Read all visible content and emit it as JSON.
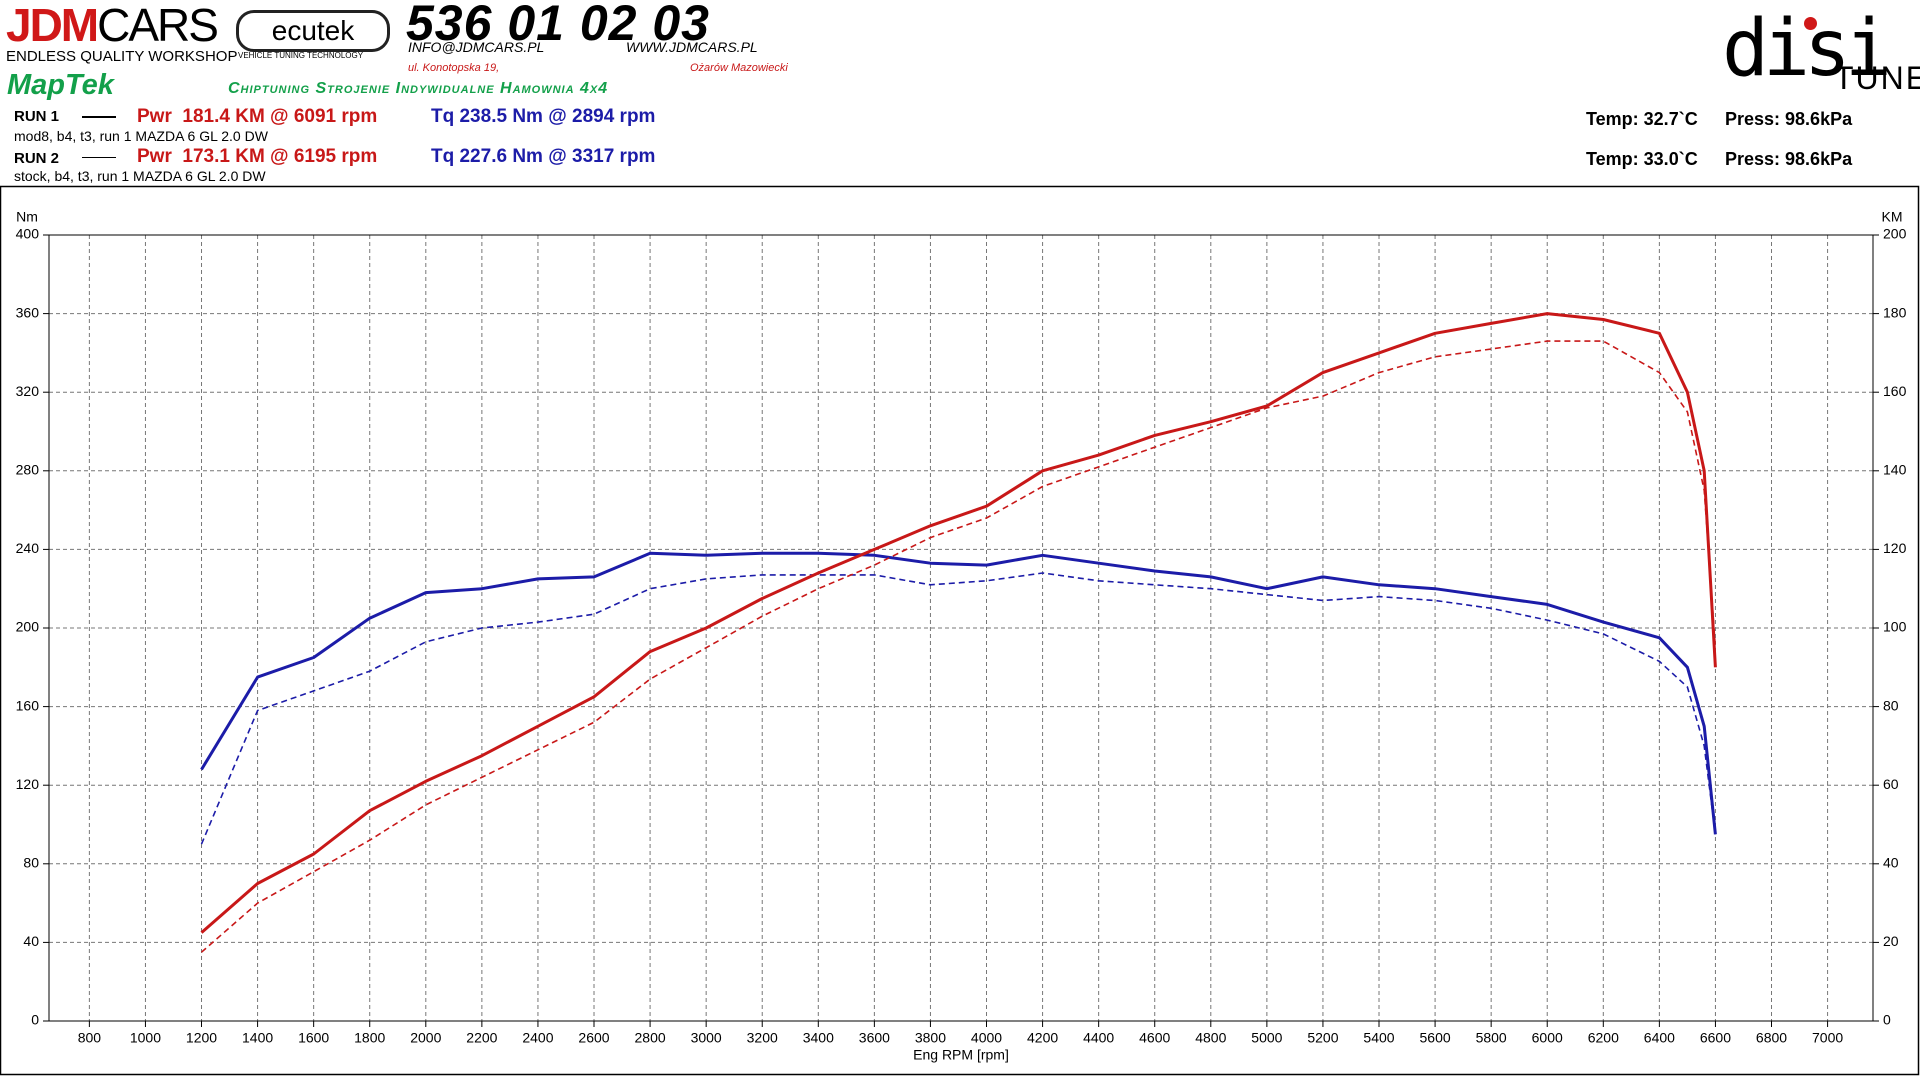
{
  "header": {
    "logo_jdm": "JDM",
    "logo_cars": "CARS",
    "workshop": "ENDLESS QUALITY WORKSHOP",
    "ecutek": "ecutek",
    "ecutek_sub": "VEHICLE TUNING TECHNOLOGY",
    "phone": "536 01 02 03",
    "email": "INFO@JDMCARS.PL",
    "web": "WWW.JDMCARS.PL",
    "street": "ul. Konotopska 19,",
    "city": "Ożarów Mazowiecki",
    "maptek": "MapTek",
    "services": "Chiptuning Strojenie Indywidualne Hamownia 4x4",
    "disi": "disi",
    "tune": "TUNE"
  },
  "runs": [
    {
      "label": "RUN 1",
      "pwr": "Pwr  181.4 KM @ 6091 rpm",
      "tq": "Tq 238.5 Nm @ 2894 rpm",
      "desc": "mod8, b4, t3, run 1 MAZDA 6 GL 2.0 DW",
      "temp": "Temp: 32.7`C",
      "press": "Press: 98.6kPa"
    },
    {
      "label": "RUN 2",
      "pwr": "Pwr  173.1 KM @ 6195 rpm",
      "tq": "Tq 227.6 Nm @ 3317 rpm",
      "desc": "stock, b4, t3, run 1 MAZDA 6 GL 2.0 DW",
      "temp": "Temp: 33.0`C",
      "press": "Press: 98.6kPa"
    }
  ],
  "chart_data": {
    "type": "line",
    "x_label": "Eng RPM [rpm]",
    "y_label": "Nm",
    "y2_label": "KM",
    "x": [
      1200,
      1400,
      1600,
      1800,
      2000,
      2200,
      2400,
      2600,
      2800,
      3000,
      3200,
      3400,
      3600,
      3800,
      4000,
      4200,
      4400,
      4600,
      4800,
      5000,
      5200,
      5400,
      5600,
      5800,
      6000,
      6200,
      6400,
      6500,
      6560,
      6600
    ],
    "series": [
      {
        "color": "#1c1ca8",
        "line_style": "solid",
        "values": [
          128,
          175,
          185,
          205,
          218,
          220,
          225,
          226,
          238,
          237,
          238,
          238,
          237,
          233,
          232,
          237,
          233,
          229,
          226,
          220,
          226,
          222,
          220,
          216,
          212,
          203,
          195,
          180,
          150,
          95
        ]
      },
      {
        "color": "#1c1ca8",
        "line_style": "dashed",
        "values": [
          90,
          158,
          168,
          178,
          193,
          200,
          203,
          207,
          220,
          225,
          227,
          227,
          227,
          222,
          224,
          228,
          224,
          222,
          220,
          217,
          214,
          216,
          214,
          210,
          204,
          197,
          183,
          170,
          140,
          95
        ]
      },
      {
        "color": "#c81818",
        "line_style": "solid",
        "axis": "y2",
        "values": [
          22.5,
          35,
          42.5,
          53.5,
          61,
          67.5,
          75,
          82.5,
          94,
          100,
          107.5,
          114,
          120,
          126,
          131,
          140,
          144,
          149,
          152.5,
          156.5,
          165,
          170,
          175,
          177.5,
          180,
          178.5,
          175,
          160,
          140,
          90
        ]
      },
      {
        "color": "#c81818",
        "line_style": "dashed",
        "axis": "y2",
        "values": [
          17.5,
          30,
          38,
          46,
          55,
          62,
          69,
          76,
          87,
          95,
          103,
          110,
          116,
          123,
          128,
          136,
          141,
          146,
          151,
          156,
          159,
          165,
          169,
          171,
          173,
          173,
          165,
          155,
          135,
          95
        ]
      }
    ],
    "xlim": [
      656,
      7162
    ],
    "xticks": [
      800,
      1000,
      1200,
      1400,
      1600,
      1800,
      2000,
      2200,
      2400,
      2600,
      2800,
      3000,
      3200,
      3400,
      3600,
      3800,
      4000,
      4200,
      4400,
      4600,
      4800,
      5000,
      5200,
      5400,
      5600,
      5800,
      6000,
      6200,
      6400,
      6600,
      6800,
      7000
    ],
    "ylim": [
      0,
      400
    ],
    "yticks": [
      0,
      40,
      80,
      120,
      160,
      200,
      240,
      280,
      320,
      360,
      400
    ],
    "y2lim": [
      0,
      200
    ],
    "y2ticks": [
      0,
      20,
      40,
      60,
      80,
      100,
      120,
      140,
      160,
      180,
      200
    ],
    "grid": true
  }
}
